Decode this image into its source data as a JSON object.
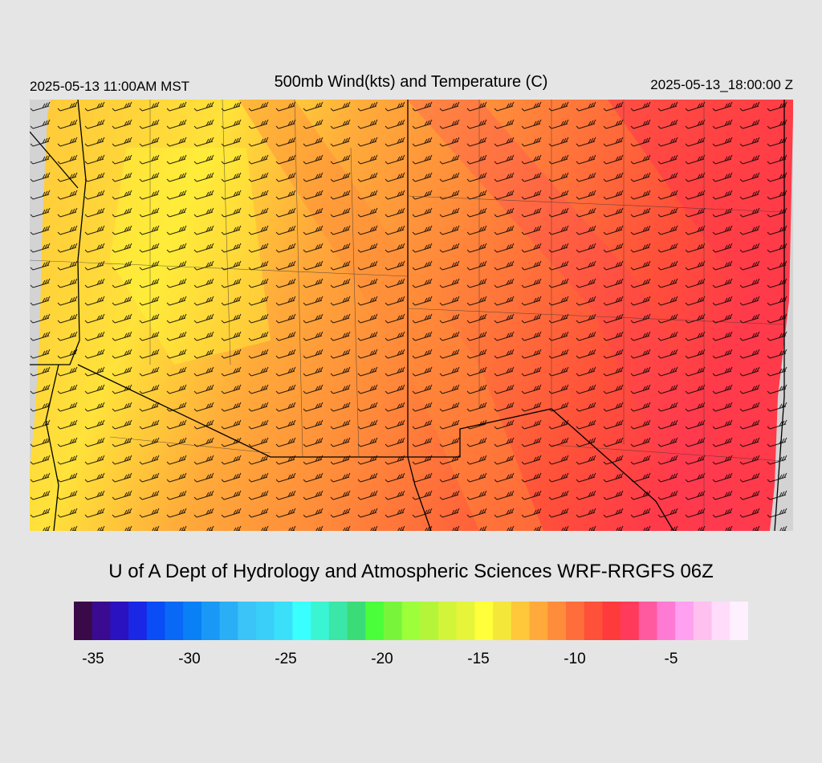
{
  "header": {
    "local_time": "2025-05-13 11:00AM MST",
    "title": "500mb Wind(kts) and Temperature (C)",
    "utc_time": "2025-05-13_18:00:00 Z"
  },
  "footer": {
    "credit": "U of A Dept of Hydrology and Atmospheric Sciences WRF-RRGFS 06Z"
  },
  "colorbar": {
    "colors": [
      "#3a0a48",
      "#3a0a90",
      "#2a12c0",
      "#1a28e6",
      "#0a4cf6",
      "#0a68f6",
      "#0a80f6",
      "#1a98f6",
      "#2aaef6",
      "#3ac4f8",
      "#3acff8",
      "#3ae0fa",
      "#3affff",
      "#3af5d2",
      "#3ae6a8",
      "#3adc78",
      "#4aff3a",
      "#78f53a",
      "#9cff3a",
      "#b4f53a",
      "#d2f53a",
      "#e6f53a",
      "#ffff3a",
      "#f5e63a",
      "#ffc83a",
      "#ffaa3a",
      "#ff8c3a",
      "#ff6e3a",
      "#ff503a",
      "#ff3a3a",
      "#ff3a5a",
      "#ff5aa0",
      "#ff7ad2",
      "#ffa0f0",
      "#ffc0f0",
      "#ffdcfa",
      "#fff0ff"
    ],
    "tick_labels": [
      "-35",
      "-30",
      "-25",
      "-20",
      "-15",
      "-10",
      "-5"
    ],
    "tick_values": [
      -35,
      -30,
      -25,
      -20,
      -15,
      -10,
      -5
    ],
    "min": -36,
    "max": -1
  },
  "map": {
    "background_color": "#d3d3d3",
    "field": "500mb temperature",
    "units": "C",
    "wind_units": "kts"
  }
}
